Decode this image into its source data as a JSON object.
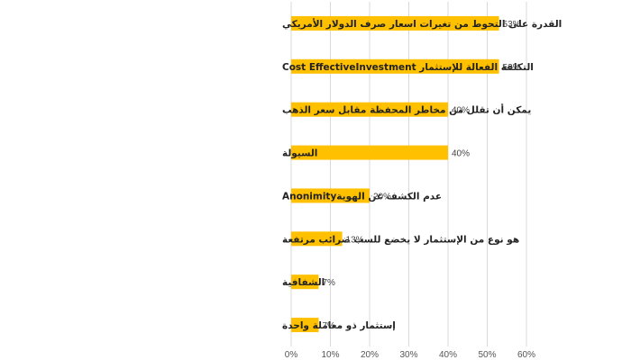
{
  "chart_data": {
    "type": "bar",
    "orientation": "horizontal",
    "categories": [
      "القدرة على التحوط من تغيرات اسعار صرف الدولار الأمريكي",
      "التكلفة الفعالة للإستثمار Cost EffectiveInvestment",
      "يمكن أن تقلل من مخاطر المحفظة مقابل سعر الذهب",
      "السيولة",
      "عدم الكشف عن الهويةAnonimity",
      "هو نوع من الإستثمار لا يخضع للسب ضرائب مرتفعة",
      "الشفافية",
      "إستثمار ذو معاملة واحدة"
    ],
    "values": [
      53,
      53,
      40,
      40,
      20,
      13,
      7,
      7
    ],
    "value_labels": [
      "53%",
      "53%",
      "40%",
      "40%",
      "20%",
      "13%",
      "7%",
      "7%"
    ],
    "xlim": [
      0,
      60
    ],
    "xticks": [
      "0%",
      "10%",
      "20%",
      "30%",
      "40%",
      "50%",
      "60%"
    ],
    "bar_color": "#FFC000",
    "gridlines": true,
    "title": "",
    "xlabel": "",
    "ylabel": ""
  }
}
